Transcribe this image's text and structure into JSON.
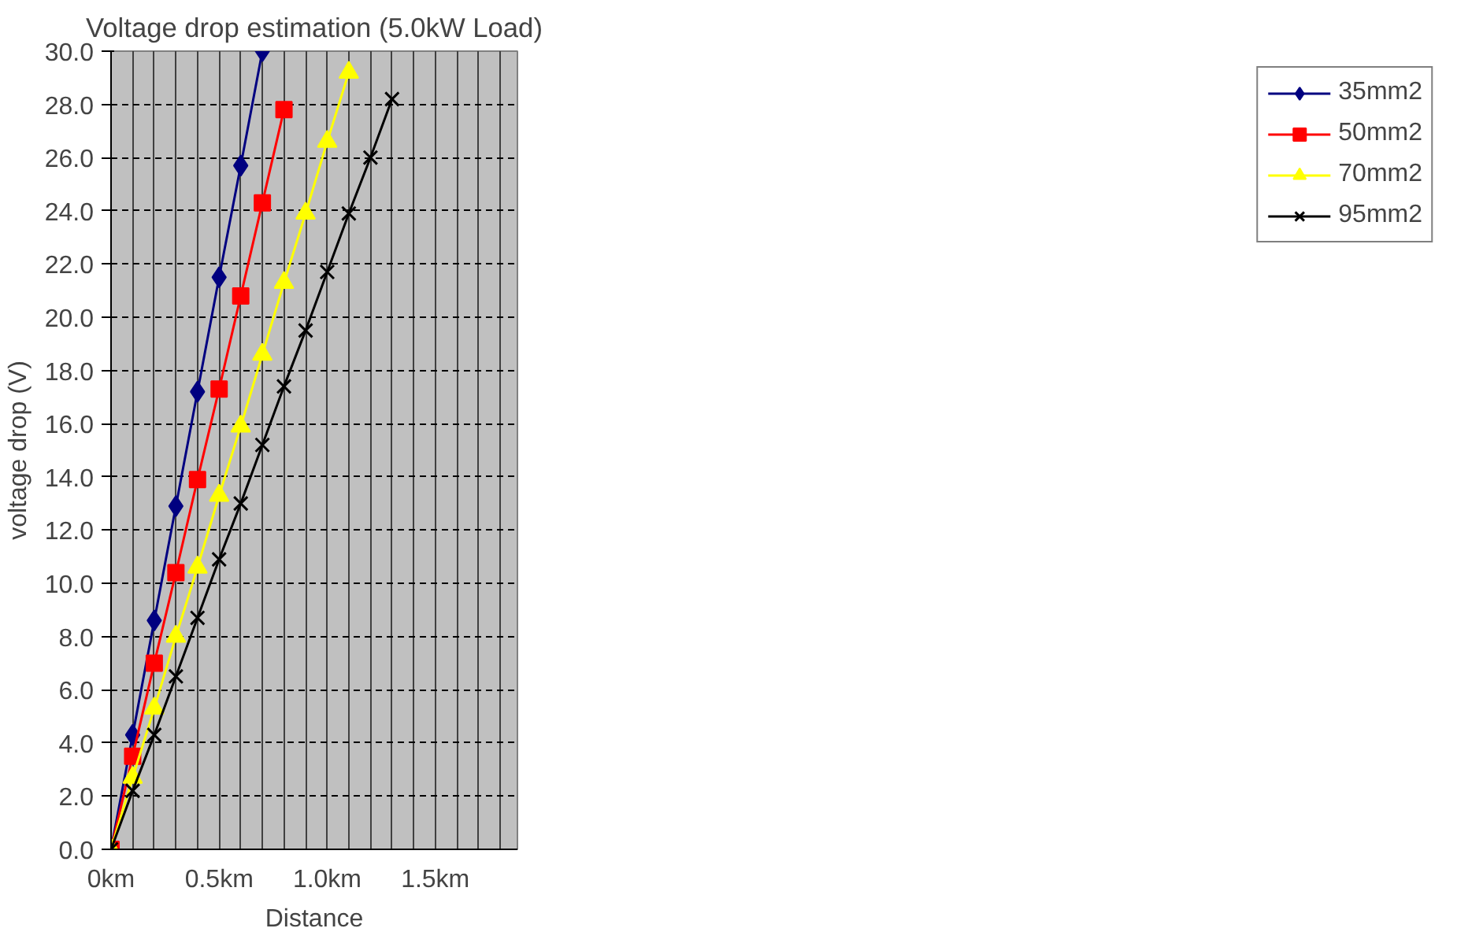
{
  "chart_data": {
    "type": "line",
    "title": "Voltage drop estimation (5.0kW Load)",
    "xlabel": "Distance",
    "ylabel": "voltage drop (V)",
    "xlim": [
      0,
      1.88
    ],
    "ylim": [
      0,
      30
    ],
    "xticks": [
      {
        "value": 0,
        "label": "0km"
      },
      {
        "value": 0.1,
        "label": null
      },
      {
        "value": 0.2,
        "label": null
      },
      {
        "value": 0.3,
        "label": null
      },
      {
        "value": 0.4,
        "label": null
      },
      {
        "value": 0.5,
        "label": "0.5km"
      },
      {
        "value": 0.6,
        "label": null
      },
      {
        "value": 0.7,
        "label": null
      },
      {
        "value": 0.8,
        "label": null
      },
      {
        "value": 0.9,
        "label": null
      },
      {
        "value": 1.0,
        "label": "1.0km"
      },
      {
        "value": 1.1,
        "label": null
      },
      {
        "value": 1.2,
        "label": null
      },
      {
        "value": 1.3,
        "label": null
      },
      {
        "value": 1.4,
        "label": null
      },
      {
        "value": 1.5,
        "label": "1.5km"
      },
      {
        "value": 1.6,
        "label": null
      },
      {
        "value": 1.7,
        "label": null
      },
      {
        "value": 1.8,
        "label": null
      }
    ],
    "yticks": [
      {
        "value": 0,
        "label": "0.0"
      },
      {
        "value": 2,
        "label": "2.0"
      },
      {
        "value": 4,
        "label": "4.0"
      },
      {
        "value": 6,
        "label": "6.0"
      },
      {
        "value": 8,
        "label": "8.0"
      },
      {
        "value": 10,
        "label": "10.0"
      },
      {
        "value": 12,
        "label": "12.0"
      },
      {
        "value": 14,
        "label": "14.0"
      },
      {
        "value": 16,
        "label": "16.0"
      },
      {
        "value": 18,
        "label": "18.0"
      },
      {
        "value": 20,
        "label": "20.0"
      },
      {
        "value": 22,
        "label": "22.0"
      },
      {
        "value": 24,
        "label": "24.0"
      },
      {
        "value": 26,
        "label": "26.0"
      },
      {
        "value": 28,
        "label": "28.0"
      },
      {
        "value": 30,
        "label": "30.0"
      }
    ],
    "grid": true,
    "legend": "right",
    "line_style": "solid",
    "series": [
      {
        "name": "35mm2",
        "color": "#000080",
        "marker": "diamond",
        "x": [
          0,
          0.1,
          0.2,
          0.3,
          0.4,
          0.5,
          0.6,
          0.7
        ],
        "values": [
          0,
          4.3,
          8.6,
          12.9,
          17.2,
          21.5,
          25.7,
          30.0
        ]
      },
      {
        "name": "50mm2",
        "color": "#ff0000",
        "marker": "square",
        "x": [
          0,
          0.1,
          0.2,
          0.3,
          0.4,
          0.5,
          0.6,
          0.7,
          0.8
        ],
        "values": [
          0,
          3.5,
          7.0,
          10.4,
          13.9,
          17.3,
          20.8,
          24.3,
          27.8
        ]
      },
      {
        "name": "70mm2",
        "color": "#ffff00",
        "marker": "triangle",
        "x": [
          0,
          0.1,
          0.2,
          0.3,
          0.4,
          0.5,
          0.6,
          0.7,
          0.8,
          0.9,
          1.0,
          1.1
        ],
        "values": [
          0,
          2.7,
          5.3,
          8.0,
          10.6,
          13.3,
          15.9,
          18.6,
          21.3,
          23.9,
          26.6,
          29.2
        ]
      },
      {
        "name": "95mm2",
        "color": "#000000",
        "marker": "cross",
        "x": [
          0,
          0.1,
          0.2,
          0.3,
          0.4,
          0.5,
          0.6,
          0.7,
          0.8,
          0.9,
          1.0,
          1.1,
          1.2,
          1.3
        ],
        "values": [
          0,
          2.2,
          4.3,
          6.5,
          8.7,
          10.9,
          13.0,
          15.2,
          17.4,
          19.5,
          21.7,
          23.9,
          26.0,
          28.2
        ]
      }
    ]
  }
}
